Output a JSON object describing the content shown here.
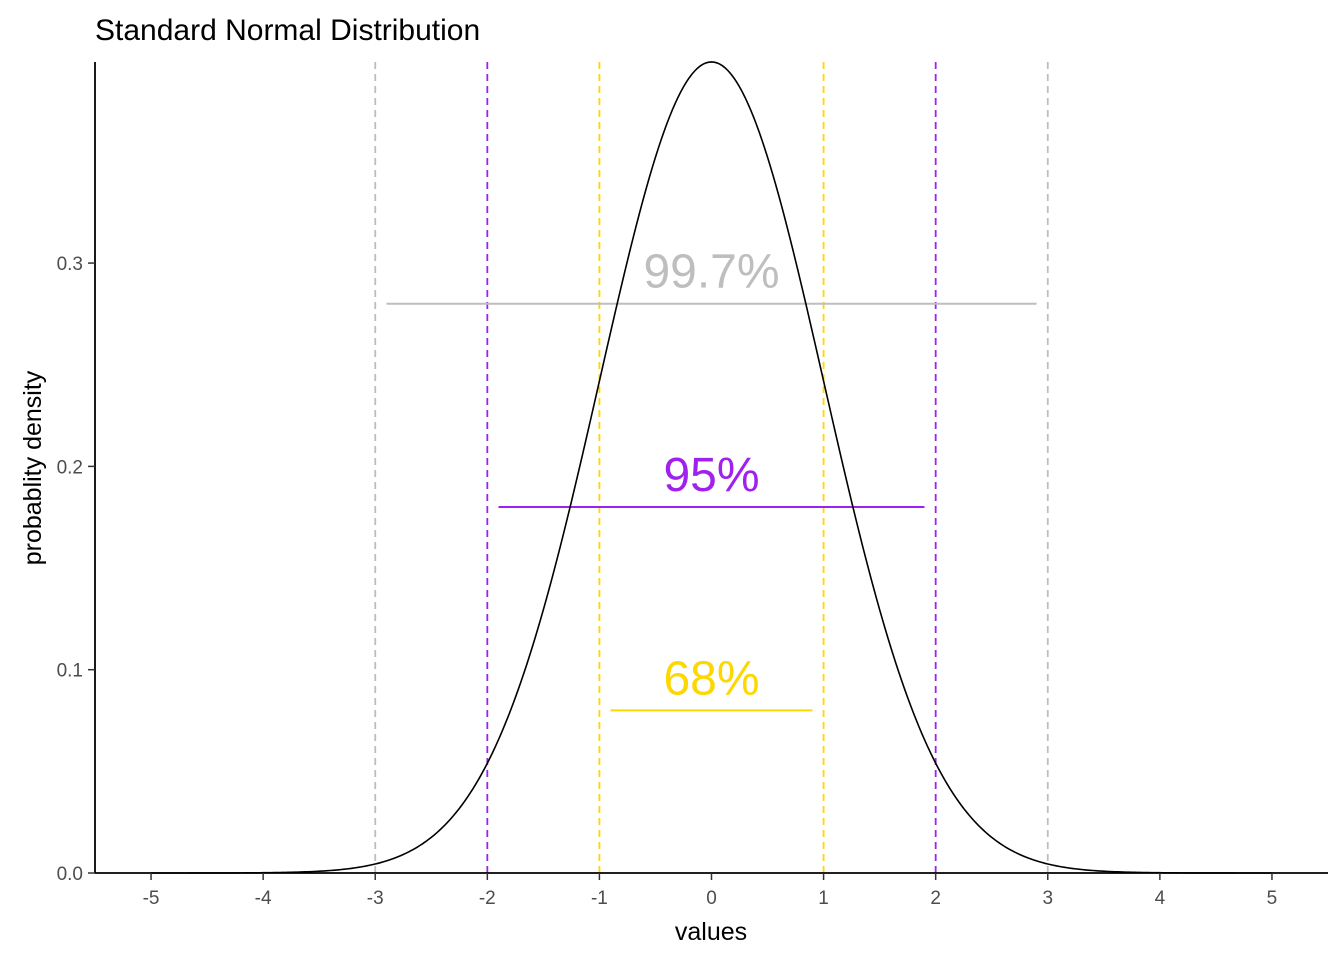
{
  "chart_data": {
    "type": "line",
    "title": "Standard Normal Distribution",
    "xlabel": "values",
    "ylabel": "probablity density",
    "xlim": [
      -5.5,
      5.5
    ],
    "ylim": [
      0,
      0.3989
    ],
    "x_ticks": [
      -5,
      -4,
      -3,
      -2,
      -1,
      0,
      1,
      2,
      3,
      4,
      5
    ],
    "x_tick_labels": [
      "-5",
      "-4",
      "-3",
      "-2",
      "-1",
      "0",
      "1",
      "2",
      "3",
      "4",
      "5"
    ],
    "y_ticks": [
      0,
      0.1,
      0.2,
      0.3
    ],
    "y_tick_labels": [
      "0.0",
      "0.1",
      "0.2",
      "0.3"
    ],
    "curve": {
      "x_from": -5,
      "x_to": 5,
      "mean": 0,
      "sd": 1,
      "color": "#000000"
    },
    "vlines": [
      {
        "x": -3,
        "color": "#bebebe"
      },
      {
        "x": 3,
        "color": "#bebebe"
      },
      {
        "x": -2,
        "color": "#a020f0"
      },
      {
        "x": 2,
        "color": "#a020f0"
      },
      {
        "x": -1,
        "color": "#ffd700"
      },
      {
        "x": 1,
        "color": "#ffd700"
      }
    ],
    "hsegments": [
      {
        "x0": -2.9,
        "x1": 2.9,
        "y": 0.28,
        "color": "#bebebe"
      },
      {
        "x0": -1.9,
        "x1": 1.9,
        "y": 0.18,
        "color": "#a020f0"
      },
      {
        "x0": -0.9,
        "x1": 0.9,
        "y": 0.08,
        "color": "#ffd700"
      }
    ],
    "annotations": [
      {
        "text": "99.7%",
        "x": 0,
        "y": 0.28,
        "color": "#bebebe"
      },
      {
        "text": "95%",
        "x": 0,
        "y": 0.18,
        "color": "#a020f0"
      },
      {
        "text": "68%",
        "x": 0,
        "y": 0.08,
        "color": "#ffd700"
      }
    ],
    "grid": false,
    "legend": "none"
  }
}
